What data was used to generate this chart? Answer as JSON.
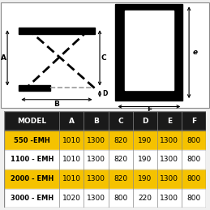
{
  "bg_color": "#f0f0f0",
  "diagram_bg": "#ffffff",
  "diagram_border": "#888888",
  "table_header_bg": "#1a1a1a",
  "table_header_fg": "#ffffff",
  "row_colors": [
    "#f5c200",
    "#ffffff",
    "#f5c200",
    "#ffffff"
  ],
  "row_text_color": "#000000",
  "columns": [
    "MODEL",
    "A",
    "B",
    "C",
    "D",
    "E",
    "F"
  ],
  "rows": [
    [
      "550 -EMH",
      "1010",
      "1300",
      "820",
      "190",
      "1300",
      "800"
    ],
    [
      "1100 - EMH",
      "1010",
      "1300",
      "820",
      "190",
      "1300",
      "800"
    ],
    [
      "2000 - EMH",
      "1010",
      "1300",
      "820",
      "190",
      "1300",
      "800"
    ],
    [
      "3000 - EMH",
      "1020",
      "1300",
      "800",
      "220",
      "1300",
      "800"
    ]
  ],
  "col_widths_ratio": [
    1.7,
    0.75,
    0.75,
    0.75,
    0.75,
    0.75,
    0.75
  ]
}
